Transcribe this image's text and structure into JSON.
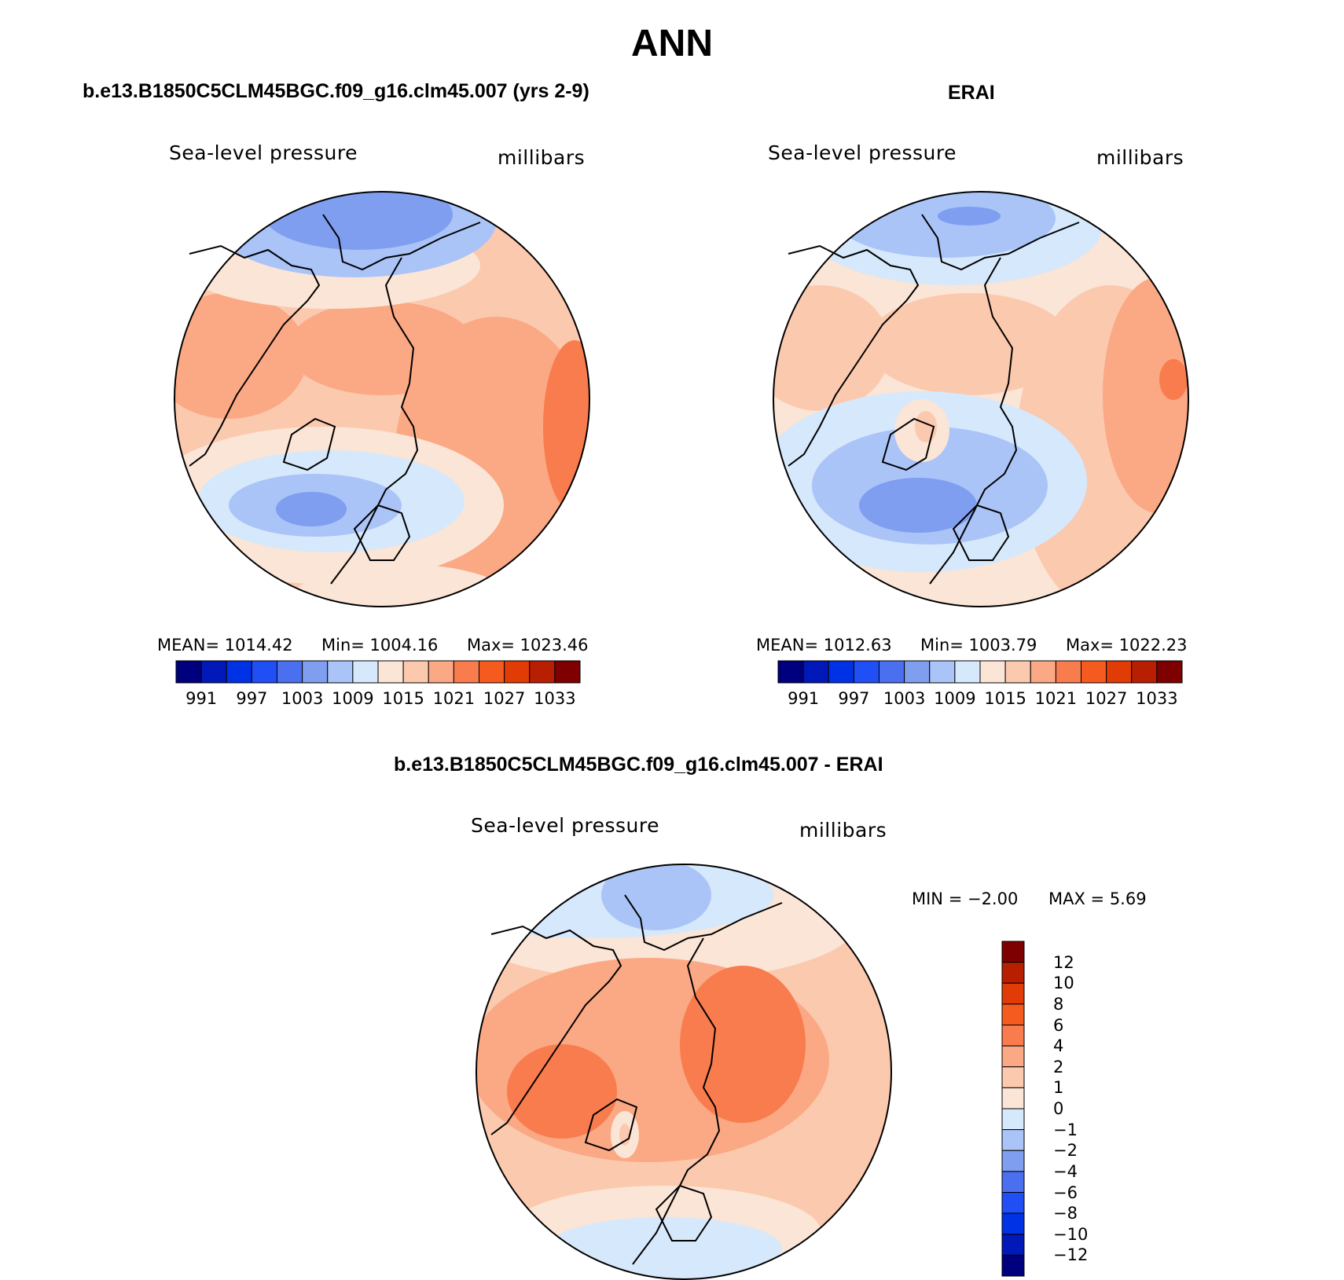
{
  "page_title": "ANN",
  "colors": {
    "abs_palette": [
      "#00007f",
      "#0019b8",
      "#0032e5",
      "#1f4ff5",
      "#4a70f0",
      "#7f9ef0",
      "#aac4f8",
      "#d6e8fb",
      "#fbe5d6",
      "#fbc9ae",
      "#fba884",
      "#f87c4d",
      "#f55a1f",
      "#e13c05",
      "#b81e00",
      "#7f0000"
    ],
    "diff_palette_top_to_bottom": [
      "#7f0000",
      "#b81e00",
      "#e13c05",
      "#f55a1f",
      "#f87c4d",
      "#fba884",
      "#fbc9ae",
      "#fbe5d6",
      "#d6e8fb",
      "#aac4f8",
      "#7f9ef0",
      "#4a70f0",
      "#1f4ff5",
      "#0032e5",
      "#0019b8",
      "#00007f"
    ]
  },
  "chart_data": [
    {
      "type": "heatmap",
      "projection": "north polar stereographic",
      "title": "b.e13.B1850C5CLM45BGC.f09_g16.clm45.007 (yrs 2-9)",
      "left_label": "Sea-level pressure",
      "right_label": "millibars",
      "stats": {
        "mean_text": "MEAN=  1014.42",
        "min_text": "Min=  1004.16",
        "max_text": "Max=  1023.46",
        "mean": 1014.42,
        "min": 1004.16,
        "max": 1023.46
      },
      "colorbar": {
        "orientation": "horizontal",
        "tick_labels": [
          "991",
          "997",
          "1003",
          "1009",
          "1015",
          "1021",
          "1027",
          "1033"
        ],
        "levels": [
          988,
          991,
          994,
          997,
          1000,
          1003,
          1006,
          1009,
          1012,
          1015,
          1018,
          1021,
          1024,
          1027,
          1030,
          1033
        ]
      }
    },
    {
      "type": "heatmap",
      "projection": "north polar stereographic",
      "title": "ERAI",
      "left_label": "Sea-level pressure",
      "right_label": "millibars",
      "stats": {
        "mean_text": "MEAN=  1012.63",
        "min_text": "Min=  1003.79",
        "max_text": "Max=  1022.23",
        "mean": 1012.63,
        "min": 1003.79,
        "max": 1022.23
      },
      "colorbar": {
        "orientation": "horizontal",
        "tick_labels": [
          "991",
          "997",
          "1003",
          "1009",
          "1015",
          "1021",
          "1027",
          "1033"
        ],
        "levels": [
          988,
          991,
          994,
          997,
          1000,
          1003,
          1006,
          1009,
          1012,
          1015,
          1018,
          1021,
          1024,
          1027,
          1030,
          1033
        ]
      }
    },
    {
      "type": "heatmap",
      "projection": "north polar stereographic",
      "title": "b.e13.B1850C5CLM45BGC.f09_g16.clm45.007 - ERAI",
      "left_label": "Sea-level pressure",
      "right_label": "millibars",
      "stats": {
        "min_text": "MIN =   −2.00",
        "max_text": "MAX =    5.69",
        "min": -2.0,
        "max": 5.69
      },
      "colorbar": {
        "orientation": "vertical",
        "tick_labels": [
          "12",
          "10",
          "8",
          "6",
          "4",
          "2",
          "1",
          "0",
          "−1",
          "−2",
          "−4",
          "−6",
          "−8",
          "−10",
          "−12"
        ]
      }
    }
  ]
}
